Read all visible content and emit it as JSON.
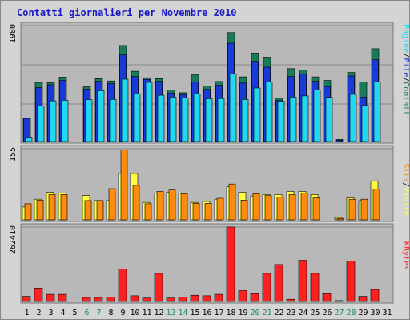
{
  "title": "Contatti giornalieri per Novembre 2010",
  "colors": {
    "background": "#d4d4d4",
    "panel": "#b8b8b8",
    "contatti": "#1a7a5a",
    "file": "#1a3ad8",
    "pagine": "#20d8f0",
    "siti": "#ff8a10",
    "visite": "#ffff40",
    "kbytes": "#ff2020",
    "weekend_label": "#1a8a5a"
  },
  "chart_data": [
    {
      "type": "bar",
      "title": "Contatti giornalieri per Novembre 2010",
      "categories": [
        "1",
        "2",
        "3",
        "4",
        "5",
        "6",
        "7",
        "8",
        "9",
        "10",
        "11",
        "12",
        "13",
        "14",
        "15",
        "16",
        "17",
        "18",
        "19",
        "20",
        "21",
        "22",
        "23",
        "24",
        "25",
        "26",
        "27",
        "28",
        "29",
        "30",
        "31"
      ],
      "ymax_label": "1980",
      "ylim": [
        0,
        1980
      ],
      "legend": [
        "Pagine",
        "File",
        "Contatti"
      ],
      "series": [
        {
          "name": "Contatti",
          "values": [
            405,
            1010,
            1005,
            1100,
            0,
            935,
            1075,
            1035,
            1640,
            1200,
            1090,
            1075,
            880,
            835,
            1140,
            950,
            1025,
            1860,
            1105,
            1510,
            1440,
            740,
            1245,
            1225,
            1105,
            1045,
            35,
            1180,
            1020,
            1585,
            0
          ]
        },
        {
          "name": "File",
          "values": [
            395,
            920,
            970,
            1045,
            0,
            895,
            1030,
            990,
            1480,
            1110,
            1060,
            1030,
            830,
            800,
            1020,
            890,
            960,
            1680,
            1000,
            1370,
            1270,
            700,
            1110,
            1150,
            1030,
            940,
            22,
            1120,
            760,
            1400,
            0
          ]
        },
        {
          "name": "Pagine",
          "values": [
            75,
            610,
            695,
            705,
            0,
            715,
            870,
            720,
            1065,
            810,
            1010,
            790,
            760,
            745,
            815,
            730,
            735,
            1155,
            720,
            915,
            1020,
            690,
            760,
            780,
            880,
            755,
            0,
            805,
            615,
            1015,
            0
          ]
        }
      ]
    },
    {
      "type": "bar",
      "categories": [
        "1",
        "2",
        "3",
        "4",
        "5",
        "6",
        "7",
        "8",
        "9",
        "10",
        "11",
        "12",
        "13",
        "14",
        "15",
        "16",
        "17",
        "18",
        "19",
        "20",
        "21",
        "22",
        "23",
        "24",
        "25",
        "26",
        "27",
        "28",
        "29",
        "30",
        "31"
      ],
      "ymax_label": "155",
      "ylim": [
        0,
        155
      ],
      "legend": [
        "Siti",
        "Visite"
      ],
      "series": [
        {
          "name": "Visite",
          "values": [
            28,
            45,
            60,
            58,
            0,
            53,
            42,
            42,
            101,
            101,
            38,
            58,
            60,
            58,
            38,
            40,
            45,
            72,
            60,
            52,
            55,
            55,
            62,
            62,
            55,
            0,
            5,
            48,
            42,
            85,
            0
          ]
        },
        {
          "name": "Siti",
          "values": [
            35,
            43,
            55,
            55,
            0,
            42,
            42,
            68,
            152,
            75,
            35,
            62,
            65,
            57,
            36,
            36,
            47,
            78,
            43,
            57,
            53,
            50,
            55,
            58,
            48,
            0,
            3,
            45,
            45,
            67,
            0
          ]
        }
      ]
    },
    {
      "type": "bar",
      "categories": [
        "1",
        "2",
        "3",
        "4",
        "5",
        "6",
        "7",
        "8",
        "9",
        "10",
        "11",
        "12",
        "13",
        "14",
        "15",
        "16",
        "17",
        "18",
        "19",
        "20",
        "21",
        "22",
        "23",
        "24",
        "25",
        "26",
        "27",
        "28",
        "29",
        "30",
        "31"
      ],
      "ymax_label": "262410",
      "ylim": [
        0,
        262410
      ],
      "legend": [
        "KBytes"
      ],
      "series": [
        {
          "name": "KBytes",
          "values": [
            18000,
            47000,
            25000,
            25000,
            0,
            14000,
            14000,
            15000,
            114000,
            20000,
            12000,
            99000,
            12000,
            15000,
            22000,
            20000,
            25000,
            262410,
            38000,
            27000,
            99000,
            130000,
            8000,
            145000,
            99000,
            27000,
            3000,
            142000,
            18000,
            42000,
            0
          ]
        }
      ]
    }
  ],
  "x_axis": {
    "labels": [
      "1",
      "2",
      "3",
      "4",
      "5",
      "6",
      "7",
      "8",
      "9",
      "10",
      "11",
      "12",
      "13",
      "14",
      "15",
      "16",
      "17",
      "18",
      "19",
      "20",
      "21",
      "22",
      "23",
      "24",
      "25",
      "26",
      "27",
      "28",
      "29",
      "30",
      "31"
    ],
    "weekend_days": [
      6,
      7,
      13,
      14,
      20,
      21,
      27,
      28
    ]
  }
}
